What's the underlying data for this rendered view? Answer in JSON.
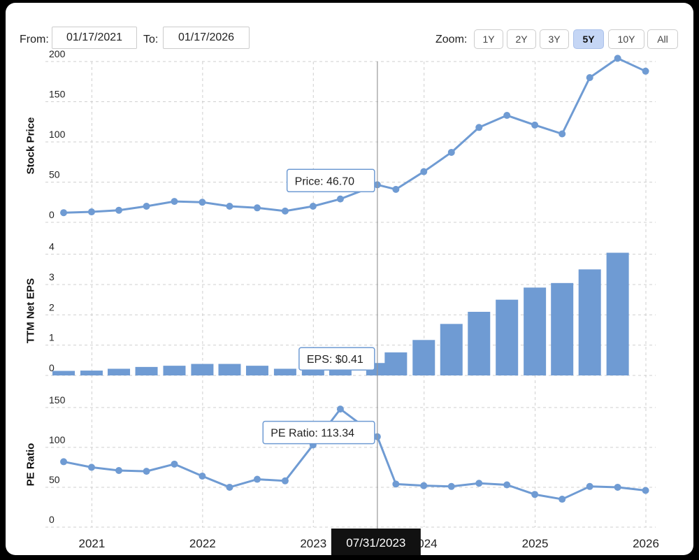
{
  "range": {
    "from_label": "From:",
    "from_value": "01/17/2021",
    "to_label": "To:",
    "to_value": "01/17/2026"
  },
  "zoom": {
    "label": "Zoom:",
    "options": [
      "1Y",
      "2Y",
      "3Y",
      "5Y",
      "10Y",
      "All"
    ],
    "active": "5Y"
  },
  "crosshair_date": "07/31/2023",
  "colors": {
    "series": "#6f9bd3",
    "grid": "#cfcfcf",
    "tooltip_border": "#6f9bd3",
    "active_zoom": "#c5d6f5"
  },
  "chart_data": [
    {
      "type": "line",
      "ylabel": "Stock Price",
      "x": [
        "2020-09-30",
        "2020-12-31",
        "2021-03-31",
        "2021-06-30",
        "2021-09-30",
        "2021-12-31",
        "2022-03-31",
        "2022-06-30",
        "2022-09-30",
        "2022-12-31",
        "2023-03-31",
        "2023-07-31",
        "2023-09-30",
        "2023-12-31",
        "2024-03-31",
        "2024-06-30",
        "2024-09-30",
        "2024-12-31",
        "2025-03-31",
        "2025-06-30",
        "2025-09-30",
        "2025-12-31"
      ],
      "values": [
        12,
        13,
        15,
        20,
        26,
        25,
        20,
        18,
        14,
        20,
        29,
        46.7,
        41,
        63,
        87,
        118,
        133,
        121,
        110,
        180,
        204,
        188
      ],
      "ylim": [
        0,
        200
      ],
      "yticks": [
        0,
        50,
        100,
        150,
        200
      ],
      "tooltip": {
        "label": "Price: 46.70",
        "index": 11
      }
    },
    {
      "type": "bar",
      "ylabel": "TTM Net EPS",
      "x": [
        "2020-09-30",
        "2020-12-31",
        "2021-03-31",
        "2021-06-30",
        "2021-09-30",
        "2021-12-31",
        "2022-03-31",
        "2022-06-30",
        "2022-09-30",
        "2022-12-31",
        "2023-03-31",
        "2023-07-31",
        "2023-09-30",
        "2023-12-31",
        "2024-03-31",
        "2024-06-30",
        "2024-09-30",
        "2024-12-31",
        "2025-03-31",
        "2025-06-30",
        "2025-09-30",
        "2025-12-31"
      ],
      "values": [
        0.15,
        0.16,
        0.22,
        0.28,
        0.32,
        0.38,
        0.38,
        0.32,
        0.22,
        0.28,
        0.35,
        0.41,
        0.76,
        1.17,
        1.7,
        2.1,
        2.5,
        2.9,
        3.05,
        3.5,
        4.05,
        null
      ],
      "ylim": [
        0,
        4.5
      ],
      "yticks": [
        0,
        1,
        2,
        3,
        4
      ],
      "tooltip": {
        "label": "EPS: $0.41",
        "index": 11
      }
    },
    {
      "type": "line",
      "ylabel": "PE Ratio",
      "x": [
        "2020-09-30",
        "2020-12-31",
        "2021-03-31",
        "2021-06-30",
        "2021-09-30",
        "2021-12-31",
        "2022-03-31",
        "2022-06-30",
        "2022-09-30",
        "2022-12-31",
        "2023-03-31",
        "2023-07-31",
        "2023-09-30",
        "2023-12-31",
        "2024-03-31",
        "2024-06-30",
        "2024-09-30",
        "2024-12-31",
        "2025-03-31",
        "2025-06-30",
        "2025-09-30",
        "2025-12-31"
      ],
      "values": [
        82,
        75,
        71,
        70,
        79,
        64,
        50,
        60,
        58,
        103,
        148,
        113.34,
        54,
        52,
        51,
        55,
        53,
        41,
        35,
        51,
        50,
        46
      ],
      "ylim": [
        0,
        170
      ],
      "yticks": [
        0,
        50,
        100,
        150
      ],
      "tooltip": {
        "label": "PE Ratio: 113.34",
        "index": 11
      }
    }
  ],
  "x_axis": {
    "ticks": [
      "2021",
      "2022",
      "2023",
      "2024",
      "2025",
      "2026"
    ],
    "tick_dates": [
      "2021-01-01",
      "2022-01-01",
      "2023-01-01",
      "2024-01-01",
      "2025-01-01",
      "2026-01-01"
    ],
    "view_start": "2020-08-01",
    "view_end": "2026-01-17"
  }
}
